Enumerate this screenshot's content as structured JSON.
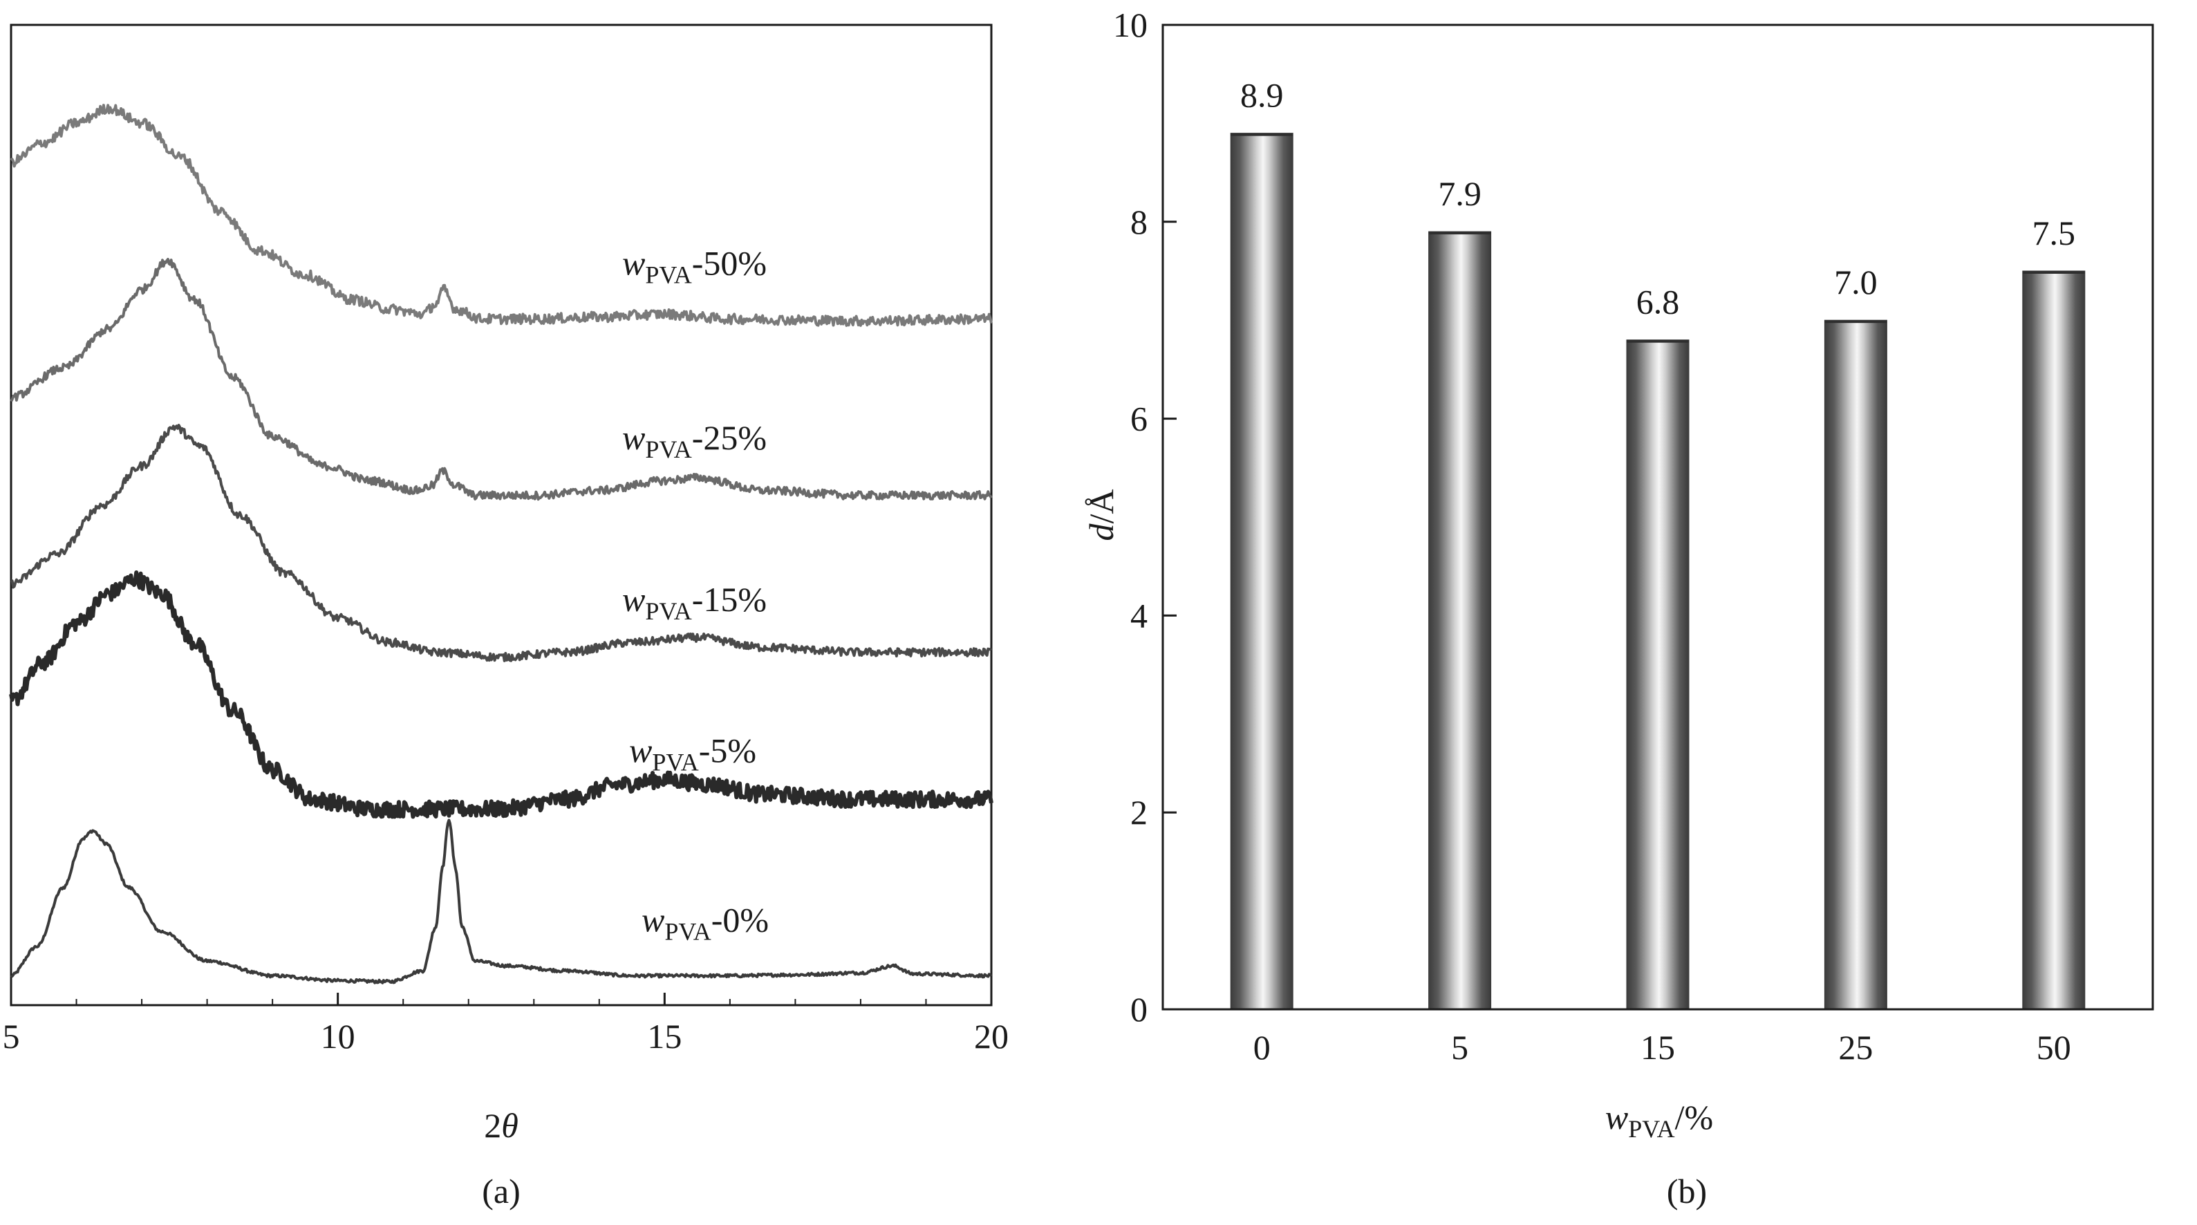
{
  "figure": {
    "panel_a_label": "(a)",
    "panel_b_label": "(b)"
  },
  "colors": {
    "axis": "#1a1a1a",
    "bar_dark": "#3c3c3c",
    "bar_light": "#f4f4f4"
  },
  "chart_data": [
    {
      "panel": "a",
      "type": "line",
      "title": "",
      "xlabel": "2θ",
      "xlabel_var": "θ",
      "xlabel_prefix": "2",
      "ylabel": "",
      "xlim": [
        5,
        20
      ],
      "ylim": [
        0,
        1
      ],
      "x_ticks": [
        5,
        10,
        15,
        20
      ],
      "y_ticks": [],
      "note": "Curves are vertically offset XRD patterns; y values are normalized offset intensity.",
      "series": [
        {
          "name": "wPVA-0%",
          "label": {
            "var": "w",
            "sub": "PVA",
            "suffix": "-0%"
          },
          "color": "#3a3a3a",
          "noise": 0.0015,
          "points": [
            [
              5,
              0.03
            ],
            [
              5.4,
              0.06
            ],
            [
              5.8,
              0.12
            ],
            [
              6.1,
              0.17
            ],
            [
              6.25,
              0.178
            ],
            [
              6.45,
              0.165
            ],
            [
              6.8,
              0.12
            ],
            [
              7.3,
              0.075
            ],
            [
              8,
              0.045
            ],
            [
              9,
              0.03
            ],
            [
              10,
              0.025
            ],
            [
              10.8,
              0.024
            ],
            [
              11.3,
              0.035
            ],
            [
              11.5,
              0.08
            ],
            [
              11.6,
              0.14
            ],
            [
              11.7,
              0.19
            ],
            [
              11.8,
              0.14
            ],
            [
              11.9,
              0.08
            ],
            [
              12.1,
              0.045
            ],
            [
              12.6,
              0.04
            ],
            [
              13.5,
              0.035
            ],
            [
              14.5,
              0.03
            ],
            [
              16,
              0.03
            ],
            [
              17,
              0.031
            ],
            [
              18,
              0.033
            ],
            [
              18.5,
              0.04
            ],
            [
              18.8,
              0.032
            ],
            [
              20,
              0.03
            ]
          ]
        },
        {
          "name": "wPVA-5%",
          "label": {
            "var": "w",
            "sub": "PVA",
            "suffix": "-5%"
          },
          "color": "#2a2a2a",
          "noise": 0.008,
          "points": [
            [
              5,
              0.31
            ],
            [
              5.5,
              0.35
            ],
            [
              6,
              0.39
            ],
            [
              6.5,
              0.42
            ],
            [
              6.9,
              0.435
            ],
            [
              7.3,
              0.42
            ],
            [
              7.8,
              0.37
            ],
            [
              8.4,
              0.3
            ],
            [
              9,
              0.24
            ],
            [
              9.6,
              0.21
            ],
            [
              10.5,
              0.2
            ],
            [
              11.5,
              0.2
            ],
            [
              12.5,
              0.2
            ],
            [
              13.5,
              0.21
            ],
            [
              14.3,
              0.225
            ],
            [
              15,
              0.23
            ],
            [
              15.7,
              0.225
            ],
            [
              16.5,
              0.215
            ],
            [
              18,
              0.21
            ],
            [
              20,
              0.21
            ]
          ]
        },
        {
          "name": "wPVA-15%",
          "label": {
            "var": "w",
            "sub": "PVA",
            "suffix": "-15%"
          },
          "color": "#4a4a4a",
          "noise": 0.004,
          "points": [
            [
              5,
              0.43
            ],
            [
              5.7,
              0.46
            ],
            [
              6.4,
              0.51
            ],
            [
              7,
              0.55
            ],
            [
              7.5,
              0.59
            ],
            [
              7.9,
              0.57
            ],
            [
              8.5,
              0.5
            ],
            [
              9.2,
              0.44
            ],
            [
              10,
              0.395
            ],
            [
              10.8,
              0.37
            ],
            [
              11.5,
              0.36
            ],
            [
              12.5,
              0.355
            ],
            [
              13.5,
              0.36
            ],
            [
              14.5,
              0.37
            ],
            [
              15.5,
              0.375
            ],
            [
              16.5,
              0.365
            ],
            [
              18,
              0.36
            ],
            [
              20,
              0.36
            ]
          ]
        },
        {
          "name": "wPVA-25%",
          "label": {
            "var": "w",
            "sub": "PVA",
            "suffix": "-25%"
          },
          "color": "#6a6a6a",
          "noise": 0.004,
          "points": [
            [
              5,
              0.62
            ],
            [
              5.8,
              0.65
            ],
            [
              6.5,
              0.69
            ],
            [
              7,
              0.73
            ],
            [
              7.4,
              0.76
            ],
            [
              7.8,
              0.72
            ],
            [
              8.4,
              0.64
            ],
            [
              9,
              0.58
            ],
            [
              9.8,
              0.55
            ],
            [
              10.5,
              0.535
            ],
            [
              11.2,
              0.525
            ],
            [
              11.45,
              0.53
            ],
            [
              11.6,
              0.545
            ],
            [
              11.8,
              0.53
            ],
            [
              12.1,
              0.52
            ],
            [
              13,
              0.52
            ],
            [
              14,
              0.525
            ],
            [
              15,
              0.535
            ],
            [
              15.5,
              0.538
            ],
            [
              16.5,
              0.525
            ],
            [
              18,
              0.52
            ],
            [
              20,
              0.52
            ]
          ]
        },
        {
          "name": "wPVA-50%",
          "label": {
            "var": "w",
            "sub": "PVA",
            "suffix": "-50%"
          },
          "color": "#7a7a7a",
          "noise": 0.005,
          "points": [
            [
              5,
              0.86
            ],
            [
              5.5,
              0.88
            ],
            [
              6,
              0.9
            ],
            [
              6.5,
              0.915
            ],
            [
              7,
              0.9
            ],
            [
              7.6,
              0.865
            ],
            [
              8.2,
              0.81
            ],
            [
              8.8,
              0.77
            ],
            [
              9.5,
              0.745
            ],
            [
              10.2,
              0.72
            ],
            [
              10.8,
              0.71
            ],
            [
              11.3,
              0.705
            ],
            [
              11.5,
              0.715
            ],
            [
              11.62,
              0.73
            ],
            [
              11.8,
              0.71
            ],
            [
              12.2,
              0.7
            ],
            [
              13,
              0.7
            ],
            [
              14,
              0.702
            ],
            [
              15,
              0.705
            ],
            [
              16,
              0.7
            ],
            [
              18,
              0.698
            ],
            [
              20,
              0.7
            ]
          ]
        }
      ]
    },
    {
      "panel": "b",
      "type": "bar",
      "title": "",
      "xlabel": "wPVA/%",
      "xlabel_parts": {
        "var": "w",
        "sub": "PVA",
        "suffix": "/%"
      },
      "ylabel": "d/Å",
      "ylabel_parts": {
        "var": "d",
        "suffix": "/Å"
      },
      "ylim": [
        0,
        10
      ],
      "y_ticks": [
        0,
        2,
        4,
        6,
        8,
        10
      ],
      "categories": [
        "0",
        "5",
        "15",
        "25",
        "50"
      ],
      "values": [
        8.9,
        7.9,
        6.8,
        7.0,
        7.5
      ],
      "value_labels": [
        "8.9",
        "7.9",
        "6.8",
        "7.0",
        "7.5"
      ]
    }
  ]
}
